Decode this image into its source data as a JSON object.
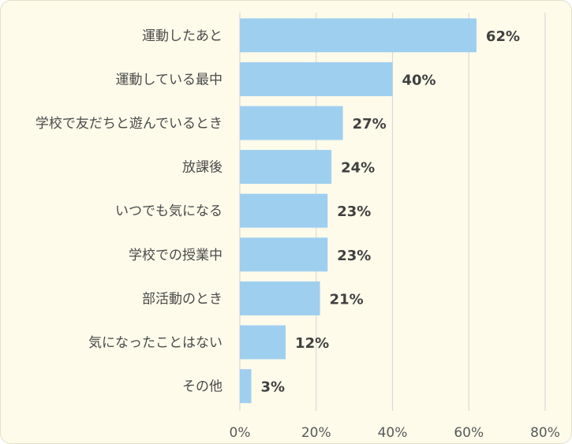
{
  "chart_data": {
    "type": "bar",
    "orientation": "horizontal",
    "categories": [
      "運動したあと",
      "運動している最中",
      "学校で友だちと遊んでいるとき",
      "放課後",
      "いつでも気になる",
      "学校での授業中",
      "部活動のとき",
      "気になったことはない",
      "その他"
    ],
    "values": [
      62,
      40,
      27,
      24,
      23,
      23,
      21,
      12,
      3
    ],
    "value_labels": [
      "62%",
      "40%",
      "27%",
      "24%",
      "23%",
      "23%",
      "21%",
      "12%",
      "3%"
    ],
    "xlim": [
      0,
      80
    ],
    "xticks": [
      0,
      20,
      40,
      60,
      80
    ],
    "xtick_labels": [
      "0%",
      "20%",
      "40%",
      "60%",
      "80%"
    ],
    "grid": true,
    "legend": "none",
    "colors": {
      "bar": "#9fcfef",
      "grid": "#d9d9d9",
      "background": "#fefbea"
    }
  }
}
